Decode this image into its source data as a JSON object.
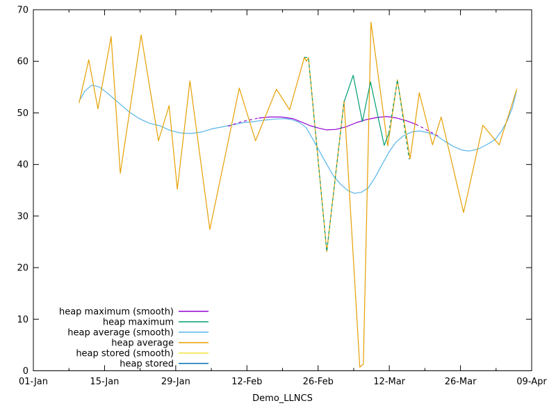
{
  "figure": {
    "background": "#ffffff",
    "axis_color": "#000000",
    "text_color": "#000000"
  },
  "chart_data": {
    "type": "line",
    "title": "",
    "xlabel": "Demo_LLNCS",
    "ylabel": "",
    "grid": false,
    "legend_position": "bottom-left-inside",
    "x_axis": {
      "unit": "date",
      "tick_labels": [
        "01-Jan",
        "15-Jan",
        "29-Jan",
        "12-Feb",
        "26-Feb",
        "12-Mar",
        "26-Mar",
        "09-Apr"
      ],
      "tick_days": [
        0,
        14,
        28,
        42,
        56,
        70,
        84,
        98
      ],
      "minor_tick_days": [
        7,
        21,
        35,
        49,
        63,
        77,
        91
      ],
      "range_days": [
        0,
        98
      ]
    },
    "y_axis": {
      "ticks": [
        0,
        10,
        20,
        30,
        40,
        50,
        60,
        70
      ],
      "range": [
        0,
        70
      ]
    },
    "series": [
      {
        "name": "heap maximum (smooth)",
        "color": "#9400d3",
        "z": 2,
        "segments": [
          {
            "dash": true,
            "points": [
              [
                38.3,
                47.4
              ],
              [
                41.0,
                48.3
              ],
              [
                44.3,
                49.0
              ]
            ]
          },
          {
            "dash": false,
            "points": [
              [
                44.3,
                49.0
              ],
              [
                46.5,
                49.2
              ],
              [
                48.8,
                49.2
              ],
              [
                51.0,
                48.9
              ],
              [
                52.8,
                48.2
              ],
              [
                54.5,
                47.5
              ],
              [
                56.3,
                47.0
              ],
              [
                57.7,
                46.7
              ],
              [
                59.5,
                46.8
              ],
              [
                61.5,
                47.3
              ],
              [
                63.5,
                48.1
              ],
              [
                65.5,
                48.7
              ],
              [
                67.5,
                49.1
              ],
              [
                69.5,
                49.3
              ],
              [
                71.5,
                49.0
              ],
              [
                73.3,
                48.5
              ],
              [
                75.2,
                47.8
              ]
            ]
          },
          {
            "dash": true,
            "points": [
              [
                75.2,
                47.8
              ],
              [
                76.6,
                47.1
              ],
              [
                78.1,
                46.3
              ],
              [
                79.8,
                45.4
              ]
            ]
          }
        ]
      },
      {
        "name": "heap maximum",
        "color": "#009e73",
        "z": 4,
        "segments": [
          {
            "dash": true,
            "points": [
              [
                53.3,
                60.8
              ],
              [
                54.1,
                60.7
              ],
              [
                57.7,
                23.1
              ],
              [
                61.1,
                52.1
              ]
            ]
          },
          {
            "dash": false,
            "points": [
              [
                61.1,
                52.1
              ],
              [
                62.9,
                57.3
              ],
              [
                64.7,
                48.3
              ],
              [
                66.3,
                56.0
              ],
              [
                69.0,
                43.7
              ],
              [
                69.9,
                46.0
              ]
            ]
          },
          {
            "dash": true,
            "points": [
              [
                69.9,
                46.0
              ],
              [
                71.6,
                56.4
              ],
              [
                73.9,
                41.0
              ]
            ]
          }
        ]
      },
      {
        "name": "heap average (smooth)",
        "color": "#56b4e9",
        "z": 1,
        "points": [
          [
            9.0,
            52.3
          ],
          [
            10.1,
            54.2
          ],
          [
            11.5,
            55.4
          ],
          [
            13.0,
            55.0
          ],
          [
            14.6,
            53.8
          ],
          [
            16.7,
            52.0
          ],
          [
            18.7,
            50.3
          ],
          [
            20.8,
            48.9
          ],
          [
            22.8,
            48.0
          ],
          [
            24.9,
            47.5
          ],
          [
            26.9,
            46.6
          ],
          [
            29.0,
            46.1
          ],
          [
            31.0,
            46.0
          ],
          [
            33.1,
            46.3
          ],
          [
            35.1,
            46.9
          ],
          [
            37.2,
            47.3
          ],
          [
            39.2,
            47.7
          ],
          [
            41.3,
            48.1
          ],
          [
            43.3,
            48.3
          ],
          [
            45.4,
            48.6
          ],
          [
            47.4,
            48.8
          ],
          [
            49.5,
            48.9
          ],
          [
            50.8,
            48.7
          ],
          [
            52.2,
            48.2
          ],
          [
            53.6,
            47.2
          ],
          [
            54.9,
            45.0
          ],
          [
            56.3,
            42.5
          ],
          [
            57.7,
            40.0
          ],
          [
            59.0,
            37.8
          ],
          [
            60.4,
            36.2
          ],
          [
            61.8,
            35.0
          ],
          [
            63.1,
            34.4
          ],
          [
            64.5,
            34.6
          ],
          [
            65.9,
            35.5
          ],
          [
            67.2,
            37.5
          ],
          [
            68.6,
            40.0
          ],
          [
            70.0,
            42.5
          ],
          [
            71.3,
            44.3
          ],
          [
            72.7,
            45.5
          ],
          [
            74.4,
            46.3
          ],
          [
            75.9,
            46.5
          ],
          [
            77.5,
            46.2
          ],
          [
            79.3,
            45.6
          ],
          [
            80.9,
            44.5
          ],
          [
            82.6,
            43.5
          ],
          [
            84.3,
            42.8
          ],
          [
            85.7,
            42.6
          ],
          [
            87.5,
            43.0
          ],
          [
            89.1,
            43.8
          ],
          [
            90.8,
            44.8
          ],
          [
            92.1,
            46.5
          ],
          [
            93.2,
            48.5
          ],
          [
            94.2,
            51.0
          ],
          [
            95.0,
            54.2
          ]
        ]
      },
      {
        "name": "heap average",
        "color": "#e69f00",
        "z": 3,
        "points": [
          [
            9.0,
            51.9
          ],
          [
            10.9,
            60.3
          ],
          [
            12.7,
            50.8
          ],
          [
            15.3,
            64.8
          ],
          [
            17.1,
            38.3
          ],
          [
            21.2,
            65.1
          ],
          [
            24.6,
            44.6
          ],
          [
            26.7,
            51.4
          ],
          [
            28.3,
            35.2
          ],
          [
            30.8,
            56.2
          ],
          [
            34.7,
            27.4
          ],
          [
            40.5,
            54.8
          ],
          [
            43.7,
            44.6
          ],
          [
            47.8,
            54.6
          ],
          [
            50.4,
            50.6
          ],
          [
            53.3,
            60.8
          ],
          [
            53.7,
            60.0
          ],
          [
            54.1,
            60.7
          ],
          [
            57.7,
            23.1
          ],
          [
            61.1,
            52.3
          ],
          [
            64.2,
            0.7
          ],
          [
            64.9,
            1.3
          ],
          [
            66.4,
            67.6
          ],
          [
            69.7,
            43.6
          ],
          [
            71.6,
            56.4
          ],
          [
            74.1,
            41.1
          ],
          [
            75.9,
            53.9
          ],
          [
            78.5,
            43.8
          ],
          [
            80.2,
            49.2
          ],
          [
            84.6,
            30.7
          ],
          [
            88.4,
            47.6
          ],
          [
            91.6,
            43.8
          ],
          [
            95.1,
            54.7
          ]
        ]
      },
      {
        "name": "heap stored (smooth)",
        "color": "#f0e442",
        "z": 0,
        "points": []
      },
      {
        "name": "heap stored",
        "color": "#0072b2",
        "z": 0,
        "points": []
      }
    ]
  }
}
